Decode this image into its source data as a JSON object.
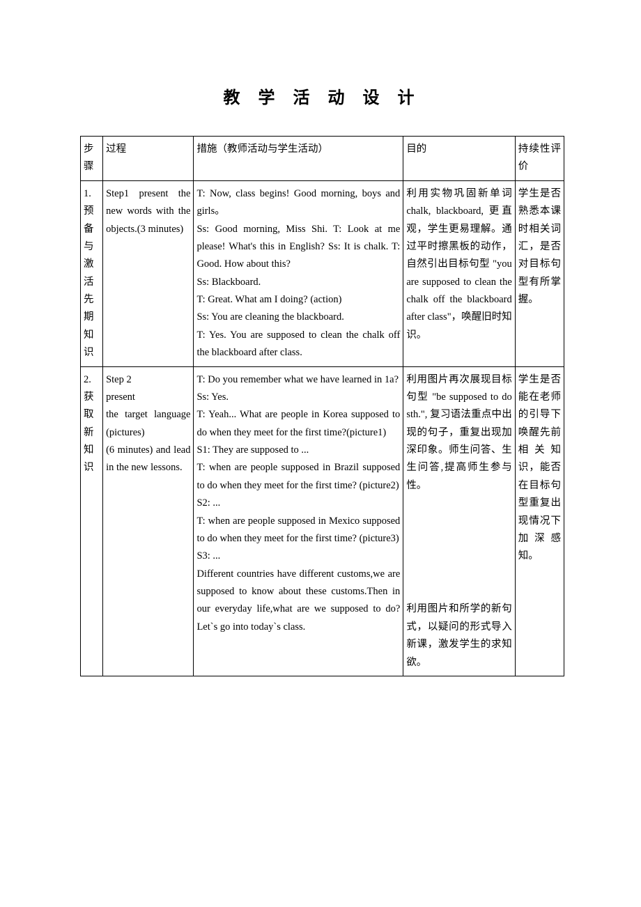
{
  "title": "教 学 活 动 设 计",
  "headers": {
    "step": "步骤",
    "process": "过程",
    "measures": "措施（教师活动与学生活动）",
    "purpose": "目的",
    "evaluation": "持续性评价"
  },
  "rows": [
    {
      "step": "1.\n预备与激活先期知识",
      "process": "Step1 present the new words with the objects.(3 minutes)",
      "measures": "T: Now, class begins! Good morning, boys and girls。\nSs: Good morning, Miss Shi. T: Look at me please! What's this in English? Ss: It is chalk. T: Good. How about this?\nSs: Blackboard.\nT: Great. What am I doing? (action)\nSs: You are cleaning the blackboard.\nT: Yes. You are supposed to clean the chalk off the blackboard after class.",
      "purpose": "利用实物巩固新单词 chalk, blackboard, 更直 观，学生更易理解。通过平时擦黑板的动作， 自然引出目标句型 \"you are supposed to clean the chalk off the blackboard after class\"，唤醒旧时知识。",
      "evaluation": "学生是否熟悉本课时相关词汇，是否对目标句型有所掌握。"
    },
    {
      "step": "2.\n获取新知识",
      "process": "Step 2\npresent\nthe target language (pictures)\n(6 minutes) and lead in the new lessons.",
      "measures": "T: Do you remember what we have learned in 1a?\nSs: Yes.\nT: Yeah... What are people in Korea supposed to do when they meet for the first time?(picture1)\nS1: They are supposed to     ...\nT: when are people supposed in Brazil supposed to do when they meet for the first time? (picture2)\nS2: ...\nT: when are people supposed in Mexico supposed to do when they meet for the first time? (picture3)\nS3: ...\nDifferent countries have different customs,we are supposed to know about these customs.Then in our everyday life,what are we supposed to do? Let`s go into today`s class.",
      "purpose": "利用图片再次展现目标句型 \"be supposed to do sth.\", 复习语法重点中出现的句子，重复出现加深印象。师生问答、生生问答,提高师生参与性。\n\n\n\n\n\n\n利用图片和所学的新句式，以疑问的形式导入新课，激发学生的求知欲。",
      "evaluation": "学生是否能在老师的引导下唤醒先前相关知识，能否在目标句型重复出现情况下加深感知。"
    }
  ]
}
